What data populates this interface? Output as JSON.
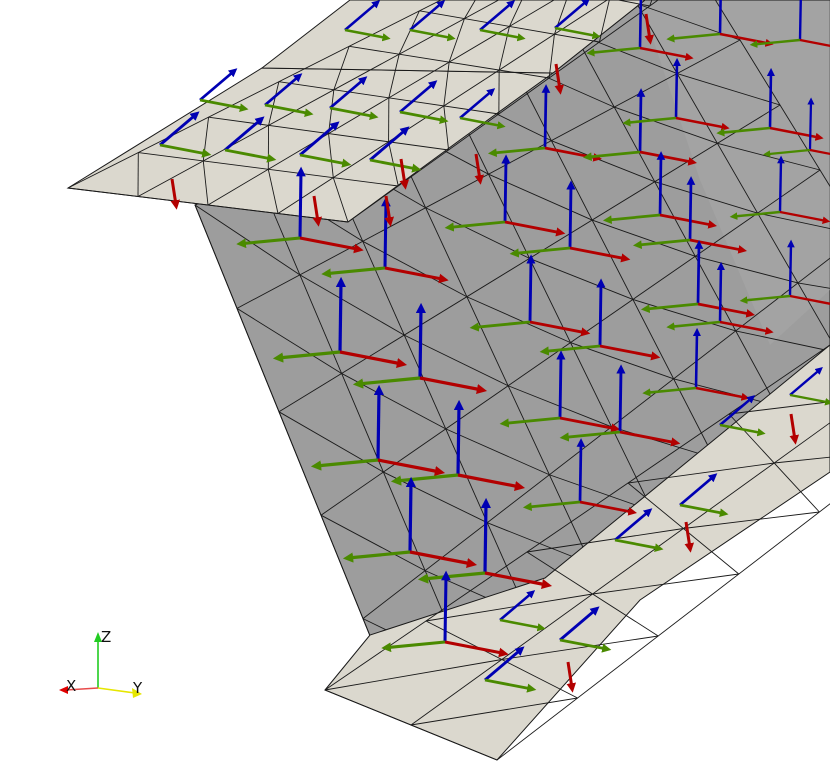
{
  "scene": {
    "background": "#ffffff",
    "colors": {
      "flange_face": "#d9d6cc",
      "web_face": "#9e9e9e",
      "web_face_far": "#a8a8a8",
      "mesh_edge": "#1a1a1a",
      "axis_x": "#b30000",
      "axis_y": "#4a8a00",
      "axis_z": "#0000b3"
    },
    "glyph_icon": "local-frame-triad-arrow-icon"
  },
  "orientation_axes": {
    "x_label": "X",
    "y_label": "Y",
    "z_label": "Z",
    "x_color": "#e00000",
    "y_color": "#e6e600",
    "z_color": "#22cc22",
    "line_color": "#e84a4a"
  }
}
